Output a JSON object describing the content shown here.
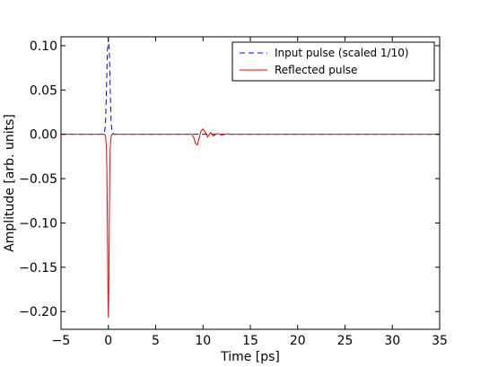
{
  "chart_data": {
    "type": "line",
    "title": "",
    "xlabel": "Time [ps]",
    "ylabel": "Amplitude [arb. units]",
    "xlim": [
      -5,
      35
    ],
    "ylim": [
      -0.22,
      0.11
    ],
    "xticks": [
      -5,
      0,
      5,
      10,
      15,
      20,
      25,
      30,
      35
    ],
    "xtick_labels": [
      "−5",
      "0",
      "5",
      "10",
      "15",
      "20",
      "25",
      "30",
      "35"
    ],
    "yticks": [
      0.1,
      0.05,
      0.0,
      -0.05,
      -0.1,
      -0.15,
      -0.2
    ],
    "ytick_labels": [
      "0.10",
      "0.05",
      "0.00",
      "−0.05",
      "−0.10",
      "−0.15",
      "−0.20"
    ],
    "grid": false,
    "legend_position": "top-right",
    "series": [
      {
        "name": "Input pulse (scaled 1/10)",
        "color": "#0000ff",
        "dash": "dashed",
        "x": [
          -5,
          -0.6,
          -0.4,
          -0.3,
          -0.2,
          -0.1,
          0,
          0.1,
          0.2,
          0.3,
          0.4,
          0.6,
          35
        ],
        "y": [
          0,
          0,
          0.002,
          0.012,
          0.05,
          0.095,
          0.108,
          0.095,
          0.05,
          0.012,
          0.002,
          0,
          0
        ]
      },
      {
        "name": "Reflected pulse",
        "color": "#ff0000",
        "dash": "solid",
        "x": [
          -5,
          -0.4,
          -0.3,
          -0.2,
          -0.15,
          -0.1,
          -0.05,
          0,
          0.05,
          0.1,
          0.15,
          0.2,
          0.3,
          0.4,
          8.8,
          9.0,
          9.2,
          9.4,
          9.6,
          9.8,
          10.0,
          10.2,
          10.5,
          10.8,
          11.1,
          11.5,
          12.0,
          12.5,
          13.0,
          35
        ],
        "y": [
          0,
          0,
          -0.002,
          -0.015,
          -0.045,
          -0.1,
          -0.17,
          -0.207,
          -0.17,
          -0.1,
          -0.045,
          -0.015,
          -0.002,
          0,
          0,
          -0.003,
          -0.01,
          -0.012,
          -0.004,
          0.004,
          0.006,
          0.003,
          -0.003,
          0.002,
          -0.002,
          0.001,
          -0.001,
          0.0005,
          0,
          0
        ]
      }
    ]
  }
}
